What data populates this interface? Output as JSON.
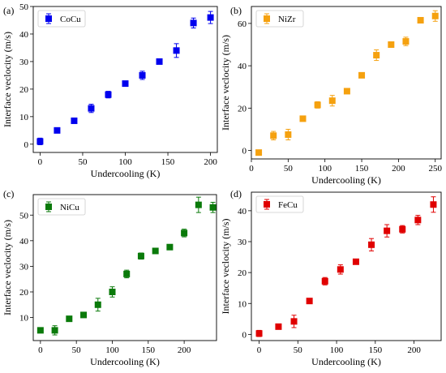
{
  "chart_data": [
    {
      "type": "scatter",
      "panel_label": "(a)",
      "legend": "CoCu",
      "color": "#0000ee",
      "xlabel": "Undercooling (K)",
      "ylabel": "Interface veclocity (m/s)",
      "xlim": [
        -8,
        208
      ],
      "ylim": [
        -3,
        50
      ],
      "xticks": [
        0,
        50,
        100,
        150,
        200
      ],
      "yticks": [
        0,
        10,
        20,
        30,
        40,
        50
      ],
      "legend_position": "top-left",
      "grid": false,
      "points": [
        {
          "x": 0,
          "y": 1,
          "err": 1.2
        },
        {
          "x": 20,
          "y": 5,
          "err": 0.5
        },
        {
          "x": 40,
          "y": 8.5,
          "err": 0.8
        },
        {
          "x": 60,
          "y": 13,
          "err": 1.5
        },
        {
          "x": 80,
          "y": 18,
          "err": 1.2
        },
        {
          "x": 100,
          "y": 22,
          "err": 0.8
        },
        {
          "x": 120,
          "y": 25,
          "err": 1.5
        },
        {
          "x": 140,
          "y": 30,
          "err": 0.8
        },
        {
          "x": 160,
          "y": 34,
          "err": 2.5
        },
        {
          "x": 180,
          "y": 44,
          "err": 1.8
        },
        {
          "x": 200,
          "y": 46,
          "err": 2.2
        }
      ]
    },
    {
      "type": "scatter",
      "panel_label": "(b)",
      "legend": "NiZr",
      "color": "#f5a10f",
      "xlabel": "Undercooling (K)",
      "ylabel": "Interface veclocity (m/s)",
      "xlim": [
        0,
        258
      ],
      "ylim": [
        -4,
        68
      ],
      "xticks": [
        0,
        50,
        100,
        150,
        200,
        250
      ],
      "yticks": [
        0,
        20,
        40,
        60
      ],
      "legend_position": "top-left",
      "grid": false,
      "points": [
        {
          "x": 10,
          "y": -1,
          "err": 1.0
        },
        {
          "x": 30,
          "y": 7,
          "err": 2.0
        },
        {
          "x": 50,
          "y": 7.5,
          "err": 2.5
        },
        {
          "x": 70,
          "y": 15,
          "err": 1.0
        },
        {
          "x": 90,
          "y": 21.5,
          "err": 1.5
        },
        {
          "x": 110,
          "y": 23.5,
          "err": 2.5
        },
        {
          "x": 130,
          "y": 28,
          "err": 1.0
        },
        {
          "x": 150,
          "y": 35.5,
          "err": 1.0
        },
        {
          "x": 170,
          "y": 45,
          "err": 2.5
        },
        {
          "x": 190,
          "y": 50,
          "err": 1.0
        },
        {
          "x": 210,
          "y": 51.5,
          "err": 2.0
        },
        {
          "x": 230,
          "y": 61.5,
          "err": 1.0
        },
        {
          "x": 250,
          "y": 63.5,
          "err": 2.5
        }
      ]
    },
    {
      "type": "scatter",
      "panel_label": "(c)",
      "legend": "NiCu",
      "color": "#0a7a0a",
      "xlabel": "Undercooling (K)",
      "ylabel": "Interface veclocity (m/s)",
      "xlim": [
        -10,
        245
      ],
      "ylim": [
        1,
        58
      ],
      "xticks": [
        0,
        50,
        100,
        150,
        200,
        250
      ],
      "yticks": [
        10,
        20,
        30,
        40,
        50
      ],
      "legend_position": "top-left",
      "grid": false,
      "points": [
        {
          "x": 0,
          "y": 5,
          "err": 1.0
        },
        {
          "x": 20,
          "y": 5,
          "err": 1.8
        },
        {
          "x": 40,
          "y": 9.5,
          "err": 1.0
        },
        {
          "x": 60,
          "y": 11,
          "err": 0.8
        },
        {
          "x": 80,
          "y": 15,
          "err": 2.5
        },
        {
          "x": 100,
          "y": 20,
          "err": 2.0
        },
        {
          "x": 120,
          "y": 27,
          "err": 1.5
        },
        {
          "x": 140,
          "y": 34,
          "err": 1.2
        },
        {
          "x": 160,
          "y": 36,
          "err": 0.8
        },
        {
          "x": 180,
          "y": 37.5,
          "err": 0.8
        },
        {
          "x": 200,
          "y": 43,
          "err": 1.5
        },
        {
          "x": 220,
          "y": 54,
          "err": 3.0
        },
        {
          "x": 240,
          "y": 53,
          "err": 2.0
        }
      ]
    },
    {
      "type": "scatter",
      "panel_label": "(d)",
      "legend": "FeCu",
      "color": "#e00000",
      "xlabel": "Undercooling (K)",
      "ylabel": "Interface veclocity (m/s)",
      "xlim": [
        -10,
        235
      ],
      "ylim": [
        -2,
        46
      ],
      "xticks": [
        0,
        50,
        100,
        150,
        200
      ],
      "yticks": [
        0,
        10,
        20,
        30,
        40
      ],
      "legend_position": "top-left",
      "grid": false,
      "points": [
        {
          "x": 0,
          "y": 0.3,
          "err": 1.0
        },
        {
          "x": 25,
          "y": 2.5,
          "err": 0.5
        },
        {
          "x": 45,
          "y": 4.2,
          "err": 2.0
        },
        {
          "x": 65,
          "y": 10.8,
          "err": 0.5
        },
        {
          "x": 85,
          "y": 17.2,
          "err": 1.2
        },
        {
          "x": 105,
          "y": 21,
          "err": 1.5
        },
        {
          "x": 125,
          "y": 23.5,
          "err": 0.8
        },
        {
          "x": 145,
          "y": 29,
          "err": 2.0
        },
        {
          "x": 165,
          "y": 33.5,
          "err": 2.0
        },
        {
          "x": 185,
          "y": 34,
          "err": 1.2
        },
        {
          "x": 205,
          "y": 37,
          "err": 1.5
        },
        {
          "x": 225,
          "y": 42,
          "err": 2.5
        }
      ]
    }
  ]
}
